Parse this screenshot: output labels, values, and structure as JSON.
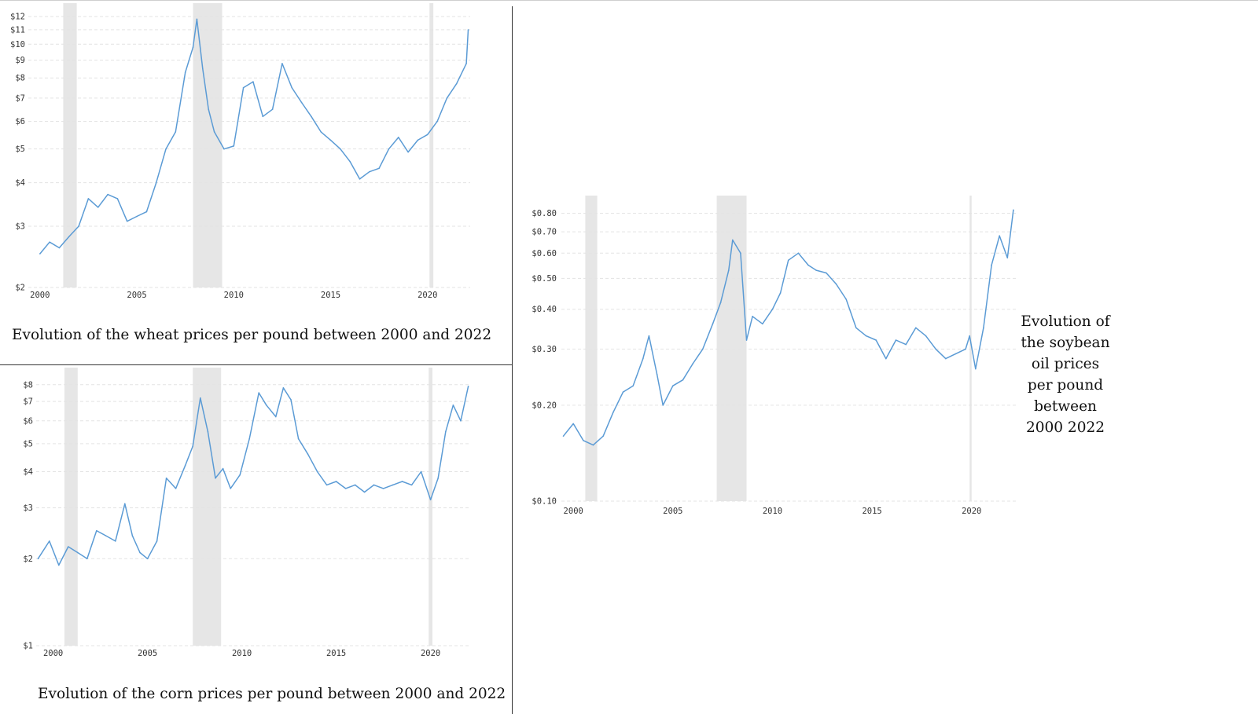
{
  "chart_data": [
    {
      "id": "wheat",
      "type": "line",
      "scale": "log",
      "caption": "Evolution of the wheat prices per pound between 2000 and 2022",
      "y_ticks": [
        {
          "value": 2,
          "label": "$2"
        },
        {
          "value": 3,
          "label": "$3"
        },
        {
          "value": 4,
          "label": "$4"
        },
        {
          "value": 5,
          "label": "$5"
        },
        {
          "value": 6,
          "label": "$6"
        },
        {
          "value": 7,
          "label": "$7"
        },
        {
          "value": 8,
          "label": "$8"
        },
        {
          "value": 9,
          "label": "$9"
        },
        {
          "value": 10,
          "label": "$10"
        },
        {
          "value": 11,
          "label": "$11"
        },
        {
          "value": 12,
          "label": "$12"
        }
      ],
      "x_ticks": [
        {
          "value": 2000,
          "label": "2000"
        },
        {
          "value": 2005,
          "label": "2005"
        },
        {
          "value": 2010,
          "label": "2010"
        },
        {
          "value": 2015,
          "label": "2015"
        },
        {
          "value": 2020,
          "label": "2020"
        }
      ],
      "xlim": [
        1999.4,
        2022.2
      ],
      "ylim": [
        2,
        12.2
      ],
      "recession_bands": [
        [
          2001.2,
          2001.9
        ],
        [
          2007.9,
          2009.4
        ],
        [
          2020.1,
          2020.3
        ]
      ],
      "x": [
        2000.0,
        2000.5,
        2001.0,
        2001.5,
        2002.0,
        2002.5,
        2003.0,
        2003.5,
        2004.0,
        2004.5,
        2005.0,
        2005.5,
        2006.0,
        2006.5,
        2007.0,
        2007.5,
        2007.9,
        2008.1,
        2008.4,
        2008.7,
        2009.0,
        2009.5,
        2010.0,
        2010.5,
        2011.0,
        2011.5,
        2012.0,
        2012.5,
        2013.0,
        2013.5,
        2014.0,
        2014.5,
        2015.0,
        2015.5,
        2016.0,
        2016.5,
        2017.0,
        2017.5,
        2018.0,
        2018.5,
        2019.0,
        2019.5,
        2020.0,
        2020.5,
        2021.0,
        2021.5,
        2022.0,
        2022.1
      ],
      "values": [
        2.5,
        2.7,
        2.6,
        2.8,
        3.0,
        3.6,
        3.4,
        3.7,
        3.6,
        3.1,
        3.2,
        3.3,
        4.0,
        5.0,
        5.6,
        8.3,
        9.8,
        11.8,
        8.5,
        6.5,
        5.6,
        5.0,
        5.1,
        7.5,
        7.8,
        6.2,
        6.5,
        8.8,
        7.5,
        6.8,
        6.2,
        5.6,
        5.3,
        5.0,
        4.6,
        4.1,
        4.3,
        4.4,
        5.0,
        5.4,
        4.9,
        5.3,
        5.5,
        6.0,
        7.0,
        7.7,
        8.8,
        11.0
      ]
    },
    {
      "id": "corn",
      "type": "line",
      "scale": "log",
      "caption": "Evolution of the corn prices per pound between 2000 and 2022",
      "y_ticks": [
        {
          "value": 1,
          "label": "$1"
        },
        {
          "value": 2,
          "label": "$2"
        },
        {
          "value": 3,
          "label": "$3"
        },
        {
          "value": 4,
          "label": "$4"
        },
        {
          "value": 5,
          "label": "$5"
        },
        {
          "value": 6,
          "label": "$6"
        },
        {
          "value": 7,
          "label": "$7"
        },
        {
          "value": 8,
          "label": "$8"
        }
      ],
      "x_ticks": [
        {
          "value": 2000,
          "label": "2000"
        },
        {
          "value": 2005,
          "label": "2005"
        },
        {
          "value": 2010,
          "label": "2010"
        },
        {
          "value": 2015,
          "label": "2015"
        },
        {
          "value": 2020,
          "label": "2020"
        }
      ],
      "xlim": [
        1999.1,
        2022.1
      ],
      "ylim": [
        1,
        8.4
      ],
      "recession_bands": [
        [
          2000.6,
          2001.3
        ],
        [
          2007.4,
          2008.9
        ],
        [
          2019.9,
          2020.1
        ]
      ],
      "x": [
        1999.2,
        1999.8,
        2000.3,
        2000.8,
        2001.3,
        2001.8,
        2002.3,
        2002.8,
        2003.3,
        2003.8,
        2004.2,
        2004.6,
        2005.0,
        2005.5,
        2006.0,
        2006.5,
        2007.0,
        2007.4,
        2007.8,
        2008.2,
        2008.6,
        2009.0,
        2009.4,
        2009.9,
        2010.4,
        2010.9,
        2011.3,
        2011.8,
        2012.2,
        2012.6,
        2013.0,
        2013.5,
        2014.0,
        2014.5,
        2015.0,
        2015.5,
        2016.0,
        2016.5,
        2017.0,
        2017.5,
        2018.0,
        2018.5,
        2019.0,
        2019.5,
        2020.0,
        2020.4,
        2020.8,
        2021.2,
        2021.6,
        2022.0
      ],
      "values": [
        2.0,
        2.3,
        1.9,
        2.2,
        2.1,
        2.0,
        2.5,
        2.4,
        2.3,
        3.1,
        2.4,
        2.1,
        2.0,
        2.3,
        3.8,
        3.5,
        4.2,
        4.9,
        7.2,
        5.5,
        3.8,
        4.1,
        3.5,
        3.9,
        5.2,
        7.5,
        6.8,
        6.2,
        7.8,
        7.1,
        5.2,
        4.6,
        4.0,
        3.6,
        3.7,
        3.5,
        3.6,
        3.4,
        3.6,
        3.5,
        3.6,
        3.7,
        3.6,
        4.0,
        3.2,
        3.8,
        5.5,
        6.8,
        6.0,
        7.9
      ]
    },
    {
      "id": "soybean-oil",
      "type": "line",
      "scale": "log",
      "caption": "Evolution of the soybean oil prices per pound between 2000 2022",
      "y_ticks": [
        {
          "value": 0.1,
          "label": "$0.10"
        },
        {
          "value": 0.2,
          "label": "$0.20"
        },
        {
          "value": 0.3,
          "label": "$0.30"
        },
        {
          "value": 0.4,
          "label": "$0.40"
        },
        {
          "value": 0.5,
          "label": "$0.50"
        },
        {
          "value": 0.6,
          "label": "$0.60"
        },
        {
          "value": 0.7,
          "label": "$0.70"
        },
        {
          "value": 0.8,
          "label": "$0.80"
        }
      ],
      "x_ticks": [
        {
          "value": 2000,
          "label": "2000"
        },
        {
          "value": 2005,
          "label": "2005"
        },
        {
          "value": 2010,
          "label": "2010"
        },
        {
          "value": 2015,
          "label": "2015"
        },
        {
          "value": 2020,
          "label": "2020"
        }
      ],
      "xlim": [
        1999.4,
        2022.3
      ],
      "ylim": [
        0.1,
        0.84
      ],
      "recession_bands": [
        [
          2000.6,
          2001.2
        ],
        [
          2007.2,
          2008.7
        ],
        [
          2019.9,
          2020.0
        ]
      ],
      "x": [
        1999.5,
        2000.0,
        2000.5,
        2001.0,
        2001.5,
        2002.0,
        2002.5,
        2003.0,
        2003.5,
        2003.8,
        2004.2,
        2004.5,
        2005.0,
        2005.5,
        2006.0,
        2006.5,
        2007.0,
        2007.4,
        2007.8,
        2008.0,
        2008.4,
        2008.7,
        2009.0,
        2009.5,
        2010.0,
        2010.4,
        2010.8,
        2011.3,
        2011.8,
        2012.2,
        2012.7,
        2013.2,
        2013.7,
        2014.2,
        2014.7,
        2015.2,
        2015.7,
        2016.2,
        2016.7,
        2017.2,
        2017.7,
        2018.2,
        2018.7,
        2019.2,
        2019.7,
        2019.9,
        2020.2,
        2020.6,
        2021.0,
        2021.4,
        2021.8,
        2022.1
      ],
      "values": [
        0.16,
        0.175,
        0.155,
        0.15,
        0.16,
        0.19,
        0.22,
        0.23,
        0.28,
        0.33,
        0.25,
        0.2,
        0.23,
        0.24,
        0.27,
        0.3,
        0.36,
        0.42,
        0.53,
        0.66,
        0.6,
        0.32,
        0.38,
        0.36,
        0.4,
        0.45,
        0.57,
        0.6,
        0.55,
        0.53,
        0.52,
        0.48,
        0.43,
        0.35,
        0.33,
        0.32,
        0.28,
        0.32,
        0.31,
        0.35,
        0.33,
        0.3,
        0.28,
        0.29,
        0.3,
        0.33,
        0.26,
        0.35,
        0.55,
        0.68,
        0.58,
        0.82
      ]
    }
  ]
}
